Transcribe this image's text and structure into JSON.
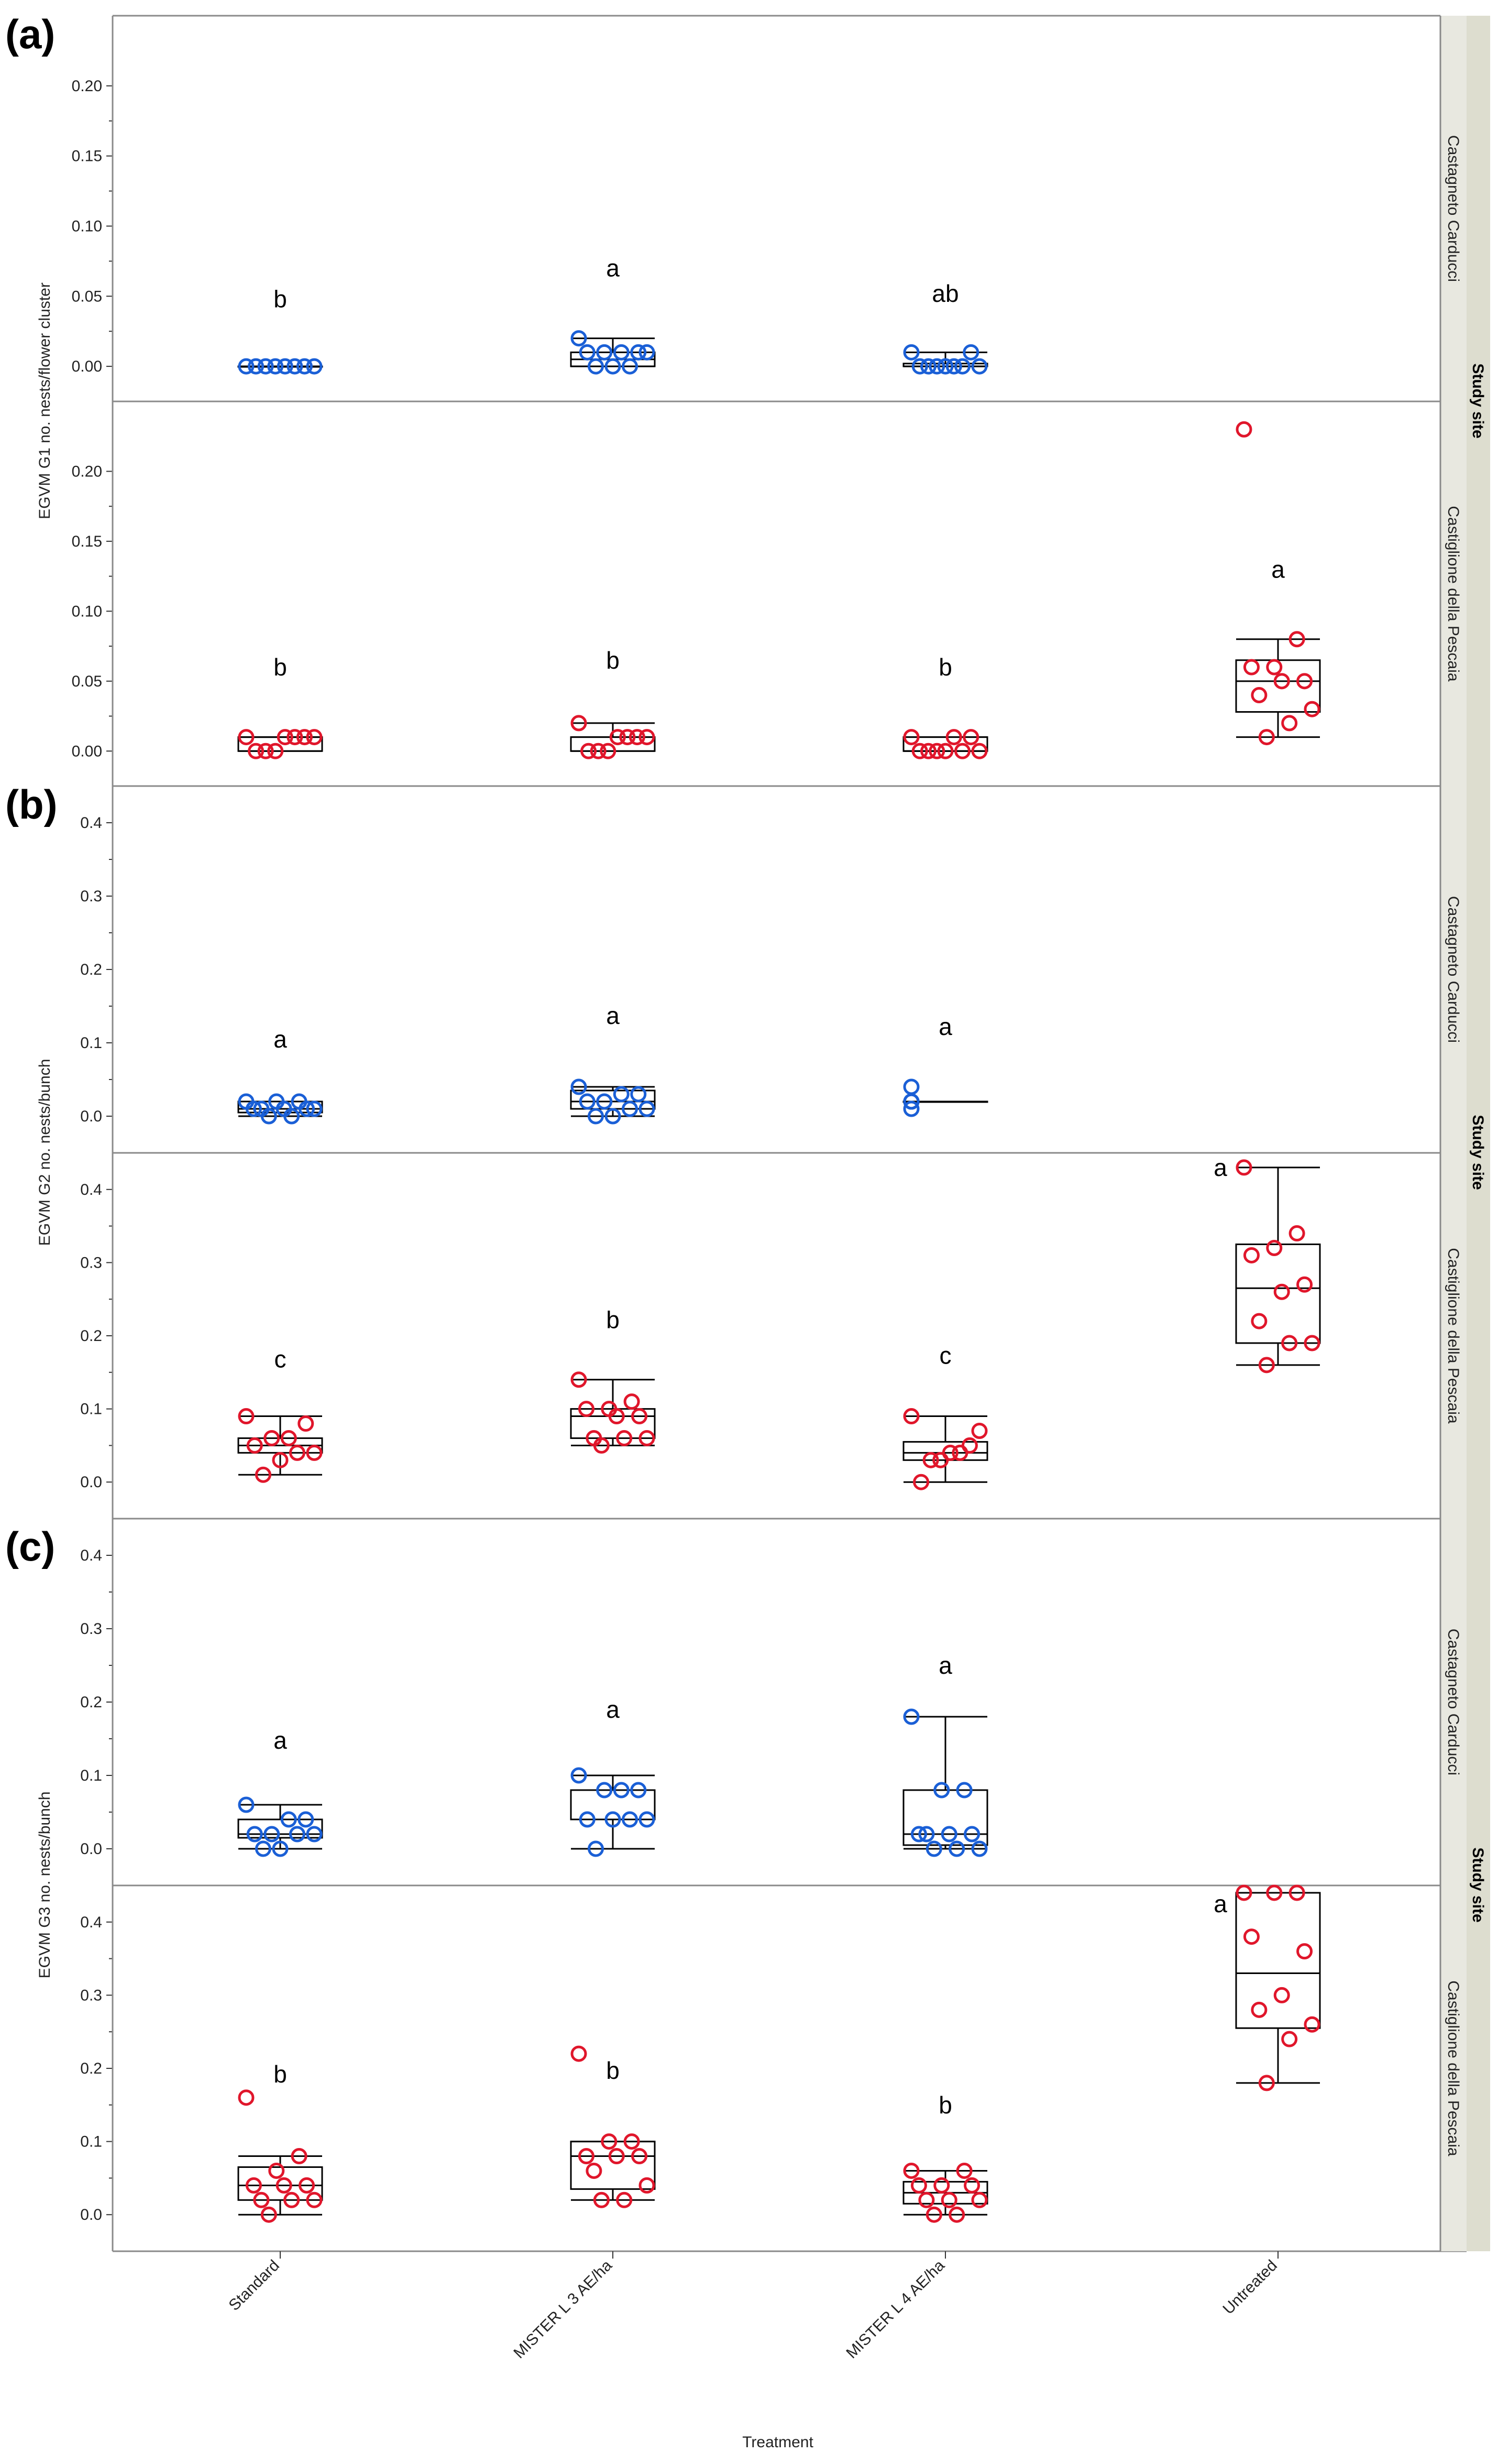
{
  "colors": {
    "castagneto": "#1a5fd6",
    "castiglione": "#e0162b",
    "box": "#000000",
    "strip_bg": "#e8e8e0",
    "strip_outer_bg": "#ddddcf",
    "frame": "#8a8a8a"
  },
  "xaxis": {
    "label": "Treatment",
    "categories": [
      "Standard",
      "MISTER L 3 AE/ha",
      "MISTER L 4 AE/ha",
      "Untreated"
    ]
  },
  "strip_title": "Study site",
  "sites": [
    "Castagneto Carducci",
    "Castiglione della Pescaia"
  ],
  "chart_data": [
    {
      "panel": "(a)",
      "type": "box",
      "ylabel": "EGVM G1 no. nests/flower cluster",
      "ylim": [
        -0.025,
        0.25
      ],
      "yticks": [
        0.0,
        0.05,
        0.1,
        0.15,
        0.2
      ],
      "ytick_labels": [
        "0.00",
        "0.05",
        "0.10",
        "0.15",
        "0.20"
      ],
      "facets": [
        {
          "site": "Castagneto Carducci",
          "groups": [
            {
              "category": "Standard",
              "letter": "b",
              "letter_y": 0.048,
              "box": [
                0,
                0,
                0,
                0,
                0
              ],
              "points": [
                0,
                0,
                0,
                0,
                0,
                0,
                0,
                0
              ]
            },
            {
              "category": "MISTER L 3 AE/ha",
              "letter": "a",
              "letter_y": 0.07,
              "box": [
                0,
                0,
                0.005,
                0.01,
                0.02
              ],
              "points": [
                0.02,
                0.01,
                0.01,
                0.01,
                0.01,
                0.01,
                0,
                0,
                0
              ]
            },
            {
              "category": "MISTER L 4 AE/ha",
              "letter": "ab",
              "letter_y": 0.052,
              "box": [
                0,
                0,
                0,
                0.002,
                0.01
              ],
              "points": [
                0.01,
                0.01,
                0,
                0,
                0,
                0,
                0,
                0,
                0
              ]
            }
          ]
        },
        {
          "site": "Castiglione della Pescaia",
          "groups": [
            {
              "category": "Standard",
              "letter": "b",
              "letter_y": 0.06,
              "box": [
                0,
                0,
                0.01,
                0.01,
                0.01
              ],
              "points": [
                0.01,
                0.01,
                0.01,
                0.01,
                0.01,
                0,
                0,
                0
              ]
            },
            {
              "category": "MISTER L 3 AE/ha",
              "letter": "b",
              "letter_y": 0.065,
              "box": [
                0,
                0,
                0.01,
                0.01,
                0.02
              ],
              "points": [
                0.02,
                0.01,
                0.01,
                0.01,
                0.01,
                0,
                0,
                0
              ]
            },
            {
              "category": "MISTER L 4 AE/ha",
              "letter": "b",
              "letter_y": 0.06,
              "box": [
                0,
                0,
                0,
                0.01,
                0.01
              ],
              "points": [
                0.01,
                0.01,
                0.01,
                0,
                0,
                0,
                0,
                0,
                0
              ]
            },
            {
              "category": "Untreated",
              "letter": "a",
              "letter_y": 0.13,
              "box": [
                0.01,
                0.028,
                0.05,
                0.065,
                0.08
              ],
              "points": [
                0.23,
                0.08,
                0.06,
                0.06,
                0.05,
                0.05,
                0.04,
                0.03,
                0.02,
                0.01
              ]
            }
          ]
        }
      ]
    },
    {
      "panel": "(b)",
      "type": "box",
      "ylabel": "EGVM G2 no. nests/bunch",
      "ylim": [
        -0.05,
        0.45
      ],
      "yticks": [
        0.0,
        0.1,
        0.2,
        0.3,
        0.4
      ],
      "ytick_labels": [
        "0.0",
        "0.1",
        "0.2",
        "0.3",
        "0.4"
      ],
      "facets": [
        {
          "site": "Castagneto Carducci",
          "groups": [
            {
              "category": "Standard",
              "letter": "a",
              "letter_y": 0.105,
              "box": [
                0,
                0.005,
                0.01,
                0.02,
                0.02
              ],
              "points": [
                0.02,
                0.02,
                0.02,
                0.01,
                0.01,
                0.01,
                0.01,
                0.01,
                0,
                0
              ]
            },
            {
              "category": "MISTER L 3 AE/ha",
              "letter": "a",
              "letter_y": 0.137,
              "box": [
                0,
                0.01,
                0.02,
                0.035,
                0.04
              ],
              "points": [
                0.04,
                0.03,
                0.03,
                0.02,
                0.02,
                0.01,
                0.01,
                0,
                0
              ]
            },
            {
              "category": "MISTER L 4 AE/ha",
              "letter": "a",
              "letter_y": 0.122,
              "box": [
                0.02,
                0.02,
                0.02,
                0.02,
                0.02
              ],
              "points": [
                0.04,
                0.02,
                0.02,
                0.02,
                0.02,
                0.02,
                0.01
              ]
            }
          ]
        },
        {
          "site": "Castiglione della Pescaia",
          "groups": [
            {
              "category": "Standard",
              "letter": "c",
              "letter_y": 0.168,
              "box": [
                0.01,
                0.04,
                0.05,
                0.06,
                0.09
              ],
              "points": [
                0.09,
                0.08,
                0.06,
                0.06,
                0.05,
                0.04,
                0.04,
                0.03,
                0.01
              ]
            },
            {
              "category": "MISTER L 3 AE/ha",
              "letter": "b",
              "letter_y": 0.222,
              "box": [
                0.05,
                0.06,
                0.09,
                0.1,
                0.14
              ],
              "points": [
                0.14,
                0.11,
                0.1,
                0.1,
                0.09,
                0.09,
                0.06,
                0.06,
                0.06,
                0.05
              ]
            },
            {
              "category": "MISTER L 4 AE/ha",
              "letter": "c",
              "letter_y": 0.173,
              "box": [
                0,
                0.03,
                0.04,
                0.055,
                0.09
              ],
              "points": [
                0.09,
                0.07,
                0.05,
                0.04,
                0.04,
                0.03,
                0.03,
                0
              ]
            },
            {
              "category": "Untreated",
              "letter": "a",
              "letter_y": 0.43,
              "letter_left": true,
              "box": [
                0.16,
                0.19,
                0.265,
                0.325,
                0.43
              ],
              "points": [
                0.43,
                0.34,
                0.32,
                0.31,
                0.27,
                0.26,
                0.22,
                0.19,
                0.19,
                0.16
              ]
            }
          ]
        }
      ]
    },
    {
      "panel": "(c)",
      "type": "box",
      "ylabel": "EGVM G3 no. nests/bunch",
      "ylim": [
        -0.05,
        0.45
      ],
      "yticks": [
        0.0,
        0.1,
        0.2,
        0.3,
        0.4
      ],
      "ytick_labels": [
        "0.0",
        "0.1",
        "0.2",
        "0.3",
        "0.4"
      ],
      "facets": [
        {
          "site": "Castagneto Carducci",
          "groups": [
            {
              "category": "Standard",
              "letter": "a",
              "letter_y": 0.148,
              "box": [
                0,
                0.015,
                0.02,
                0.04,
                0.06
              ],
              "points": [
                0.06,
                0.04,
                0.04,
                0.02,
                0.02,
                0.02,
                0.02,
                0,
                0
              ]
            },
            {
              "category": "MISTER L 3 AE/ha",
              "letter": "a",
              "letter_y": 0.19,
              "box": [
                0,
                0.04,
                0.08,
                0.08,
                0.1
              ],
              "points": [
                0.1,
                0.08,
                0.08,
                0.08,
                0.04,
                0.04,
                0.04,
                0.04,
                0
              ]
            },
            {
              "category": "MISTER L 4 AE/ha",
              "letter": "a",
              "letter_y": 0.25,
              "box": [
                0,
                0.005,
                0.02,
                0.08,
                0.18
              ],
              "points": [
                0.18,
                0.08,
                0.08,
                0.02,
                0.02,
                0.02,
                0.02,
                0,
                0,
                0
              ]
            }
          ]
        },
        {
          "site": "Castiglione della Pescaia",
          "groups": [
            {
              "category": "Standard",
              "letter": "b",
              "letter_y": 0.192,
              "box": [
                0,
                0.02,
                0.04,
                0.065,
                0.08
              ],
              "points": [
                0.16,
                0.08,
                0.06,
                0.04,
                0.04,
                0.04,
                0.02,
                0.02,
                0.02,
                0
              ]
            },
            {
              "category": "MISTER L 3 AE/ha",
              "letter": "b",
              "letter_y": 0.197,
              "box": [
                0.02,
                0.035,
                0.08,
                0.1,
                0.1
              ],
              "points": [
                0.22,
                0.1,
                0.1,
                0.08,
                0.08,
                0.08,
                0.06,
                0.04,
                0.02,
                0.02
              ]
            },
            {
              "category": "MISTER L 4 AE/ha",
              "letter": "b",
              "letter_y": 0.15,
              "box": [
                0,
                0.015,
                0.03,
                0.045,
                0.06
              ],
              "points": [
                0.06,
                0.06,
                0.04,
                0.04,
                0.04,
                0.02,
                0.02,
                0.02,
                0,
                0
              ]
            },
            {
              "category": "Untreated",
              "letter": "a",
              "letter_y": 0.425,
              "letter_left": true,
              "box": [
                0.18,
                0.255,
                0.33,
                0.44,
                0.44
              ],
              "points": [
                0.44,
                0.44,
                0.44,
                0.38,
                0.36,
                0.3,
                0.28,
                0.26,
                0.24,
                0.18
              ]
            }
          ]
        }
      ]
    }
  ]
}
